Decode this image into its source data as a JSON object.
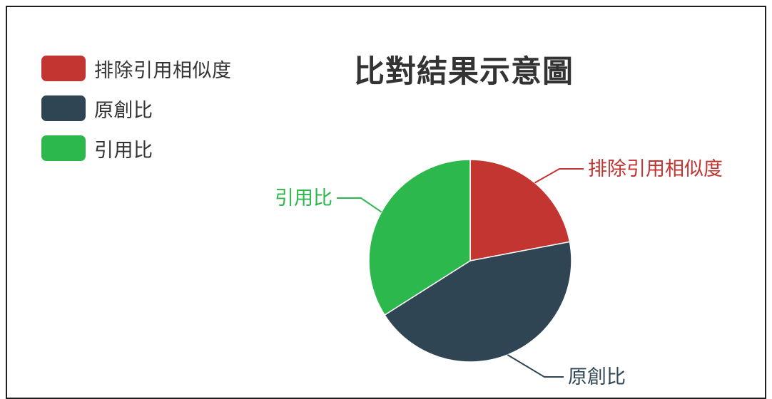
{
  "chart_data": {
    "type": "pie",
    "title": "比對結果示意圖",
    "start_angle_deg": 90,
    "direction": "clockwise",
    "slices": [
      {
        "label": "排除引用相似度",
        "value": 22,
        "color": "#c23531"
      },
      {
        "label": "原創比",
        "value": 44,
        "color": "#2f4554"
      },
      {
        "label": "引用比",
        "value": 34,
        "color": "#2db84d"
      }
    ],
    "legend_position": "top-left",
    "label_line_color_rule": "slice"
  }
}
